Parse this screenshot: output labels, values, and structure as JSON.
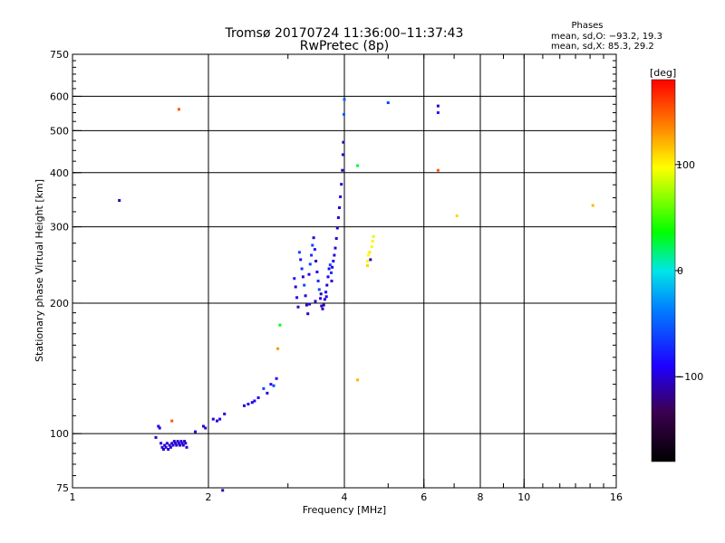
{
  "chart_data": {
    "type": "scatter",
    "title": "Tromsø 20170724 11:36:00–11:37:43",
    "subtitle": "RwPretec (8p)",
    "info": {
      "heading": "Phases",
      "line_o": "mean, sd,O: −93.2, 19.3",
      "line_x": "mean, sd,X:  85.3, 29.2"
    },
    "xlabel": "Frequency [MHz]",
    "ylabel": "Stationary phase Virtual Height [km]",
    "xscale": "log",
    "yscale": "log",
    "xlim": [
      1,
      16
    ],
    "ylim": [
      75,
      750
    ],
    "x_ticks": [
      1,
      2,
      4,
      6,
      8,
      10,
      16
    ],
    "x_tick_labels": [
      "1",
      "2",
      "4",
      "6",
      "8",
      "10",
      "16"
    ],
    "x_grid": [
      2,
      4,
      6,
      8,
      10
    ],
    "y_ticks": [
      75,
      100,
      200,
      300,
      400,
      500,
      600,
      750
    ],
    "y_tick_labels": [
      "75",
      "100",
      "200",
      "300",
      "400",
      "500",
      "600",
      "750"
    ],
    "y_grid": [
      100,
      200,
      300,
      400,
      500,
      600
    ],
    "colorbar": {
      "label": "[deg]",
      "min": -180,
      "max": 180,
      "ticks": [
        100,
        0,
        -100
      ],
      "tick_labels": [
        "100",
        "0",
        "−100"
      ]
    },
    "points": [
      [
        1.27,
        345,
        -110
      ],
      [
        1.72,
        560,
        150
      ],
      [
        1.66,
        107,
        150
      ],
      [
        1.53,
        98,
        -100
      ],
      [
        1.55,
        104,
        -100
      ],
      [
        1.56,
        103,
        -95
      ],
      [
        1.57,
        95,
        -100
      ],
      [
        1.58,
        93,
        -100
      ],
      [
        1.59,
        92,
        -105
      ],
      [
        1.6,
        94,
        -100
      ],
      [
        1.61,
        93,
        -95
      ],
      [
        1.62,
        95,
        -100
      ],
      [
        1.63,
        92,
        -100
      ],
      [
        1.64,
        94,
        -105
      ],
      [
        1.65,
        93,
        -100
      ],
      [
        1.66,
        95,
        -100
      ],
      [
        1.67,
        94,
        -95
      ],
      [
        1.68,
        96,
        -100
      ],
      [
        1.69,
        95,
        -100
      ],
      [
        1.7,
        94,
        -105
      ],
      [
        1.71,
        96,
        -100
      ],
      [
        1.72,
        95,
        -95
      ],
      [
        1.73,
        94,
        -100
      ],
      [
        1.74,
        96,
        -100
      ],
      [
        1.75,
        95,
        -100
      ],
      [
        1.76,
        94,
        -105
      ],
      [
        1.77,
        96,
        -100
      ],
      [
        1.78,
        95,
        -100
      ],
      [
        1.79,
        93,
        -100
      ],
      [
        1.87,
        101,
        -100
      ],
      [
        1.95,
        104,
        -100
      ],
      [
        1.97,
        103,
        -100
      ],
      [
        2.05,
        108,
        -100
      ],
      [
        2.09,
        107,
        -100
      ],
      [
        2.12,
        108,
        -90
      ],
      [
        2.17,
        111,
        -95
      ],
      [
        2.4,
        116,
        -100
      ],
      [
        2.45,
        117,
        -90
      ],
      [
        2.5,
        118,
        -95
      ],
      [
        2.53,
        119,
        -90
      ],
      [
        2.58,
        121,
        -95
      ],
      [
        2.65,
        127,
        -60
      ],
      [
        2.7,
        124,
        -100
      ],
      [
        2.75,
        130,
        -80
      ],
      [
        2.79,
        129,
        -60
      ],
      [
        2.83,
        134,
        -85
      ],
      [
        2.85,
        157,
        130
      ],
      [
        2.88,
        178,
        30
      ],
      [
        2.15,
        74,
        -110
      ],
      [
        3.1,
        228,
        -80
      ],
      [
        3.12,
        218,
        -100
      ],
      [
        3.14,
        206,
        -90
      ],
      [
        3.16,
        196,
        -100
      ],
      [
        3.18,
        262,
        -60
      ],
      [
        3.2,
        252,
        -80
      ],
      [
        3.22,
        240,
        -70
      ],
      [
        3.24,
        230,
        -100
      ],
      [
        3.26,
        220,
        -60
      ],
      [
        3.28,
        208,
        -100
      ],
      [
        3.3,
        198,
        -110
      ],
      [
        3.32,
        189,
        -100
      ],
      [
        3.34,
        233,
        -90
      ],
      [
        3.36,
        246,
        -60
      ],
      [
        3.38,
        258,
        -70
      ],
      [
        3.4,
        272,
        -60
      ],
      [
        3.42,
        283,
        -100
      ],
      [
        3.44,
        266,
        -80
      ],
      [
        3.46,
        250,
        -110
      ],
      [
        3.48,
        236,
        -90
      ],
      [
        3.5,
        225,
        -70
      ],
      [
        3.52,
        215,
        -60
      ],
      [
        3.54,
        205,
        -100
      ],
      [
        3.56,
        197,
        -110
      ],
      [
        3.58,
        194,
        -100
      ],
      [
        3.6,
        198,
        -110
      ],
      [
        3.62,
        204,
        -100
      ],
      [
        3.64,
        212,
        -90
      ],
      [
        3.66,
        220,
        -100
      ],
      [
        3.68,
        230,
        -95
      ],
      [
        3.7,
        240,
        -90
      ],
      [
        3.72,
        245,
        -60
      ],
      [
        3.74,
        235,
        -70
      ],
      [
        3.76,
        242,
        -100
      ],
      [
        3.78,
        250,
        -90
      ],
      [
        3.8,
        258,
        -100
      ],
      [
        3.82,
        268,
        -95
      ],
      [
        3.84,
        282,
        -100
      ],
      [
        3.86,
        298,
        -100
      ],
      [
        3.88,
        315,
        -100
      ],
      [
        3.9,
        332,
        -105
      ],
      [
        3.92,
        352,
        -95
      ],
      [
        3.94,
        376,
        -100
      ],
      [
        3.96,
        405,
        -105
      ],
      [
        3.97,
        440,
        -100
      ],
      [
        3.98,
        470,
        -110
      ],
      [
        3.99,
        545,
        -50
      ],
      [
        4.0,
        590,
        -50
      ],
      [
        3.35,
        199,
        -100
      ],
      [
        3.45,
        202,
        -100
      ],
      [
        3.55,
        210,
        -110
      ],
      [
        3.65,
        207,
        -95
      ],
      [
        3.75,
        225,
        -105
      ],
      [
        4.28,
        415,
        30
      ],
      [
        4.28,
        133,
        120
      ],
      [
        4.5,
        250,
        100
      ],
      [
        4.52,
        258,
        95
      ],
      [
        4.55,
        262,
        105
      ],
      [
        4.57,
        252,
        -110
      ],
      [
        4.6,
        270,
        95
      ],
      [
        4.62,
        278,
        100
      ],
      [
        4.64,
        285,
        90
      ],
      [
        4.5,
        244,
        110
      ],
      [
        5.0,
        580,
        -60
      ],
      [
        6.45,
        570,
        -100
      ],
      [
        6.45,
        550,
        -80
      ],
      [
        6.45,
        405,
        150
      ],
      [
        7.1,
        318,
        110
      ],
      [
        14.2,
        336,
        120
      ]
    ]
  }
}
